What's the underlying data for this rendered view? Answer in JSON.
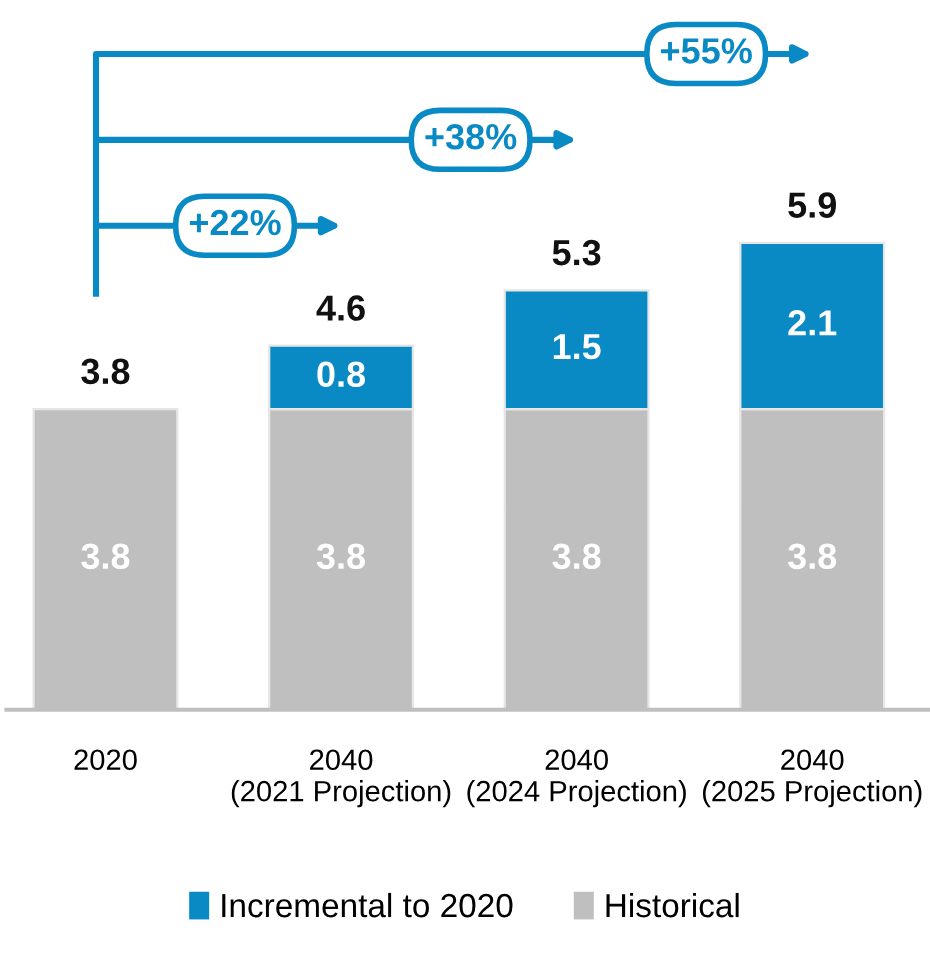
{
  "chart_data": {
    "type": "bar",
    "stacked": true,
    "categories": [
      "2020",
      "2040\n(2021 Projection)",
      "2040\n(2024 Projection)",
      "2040\n(2025 Projection)"
    ],
    "series": [
      {
        "name": "Historical",
        "color": "#bfbfbf",
        "values": [
          3.8,
          3.8,
          3.8,
          3.8
        ]
      },
      {
        "name": "Incremental to 2020",
        "color": "#0a8ac4",
        "values": [
          null,
          0.8,
          1.5,
          2.1
        ]
      }
    ],
    "data_labels": true,
    "totals": [
      "3.8",
      "4.6",
      "5.3",
      "5.9"
    ],
    "annotations": [
      "+22%",
      "+38%",
      "+55%"
    ],
    "legend": "bottom"
  }
}
